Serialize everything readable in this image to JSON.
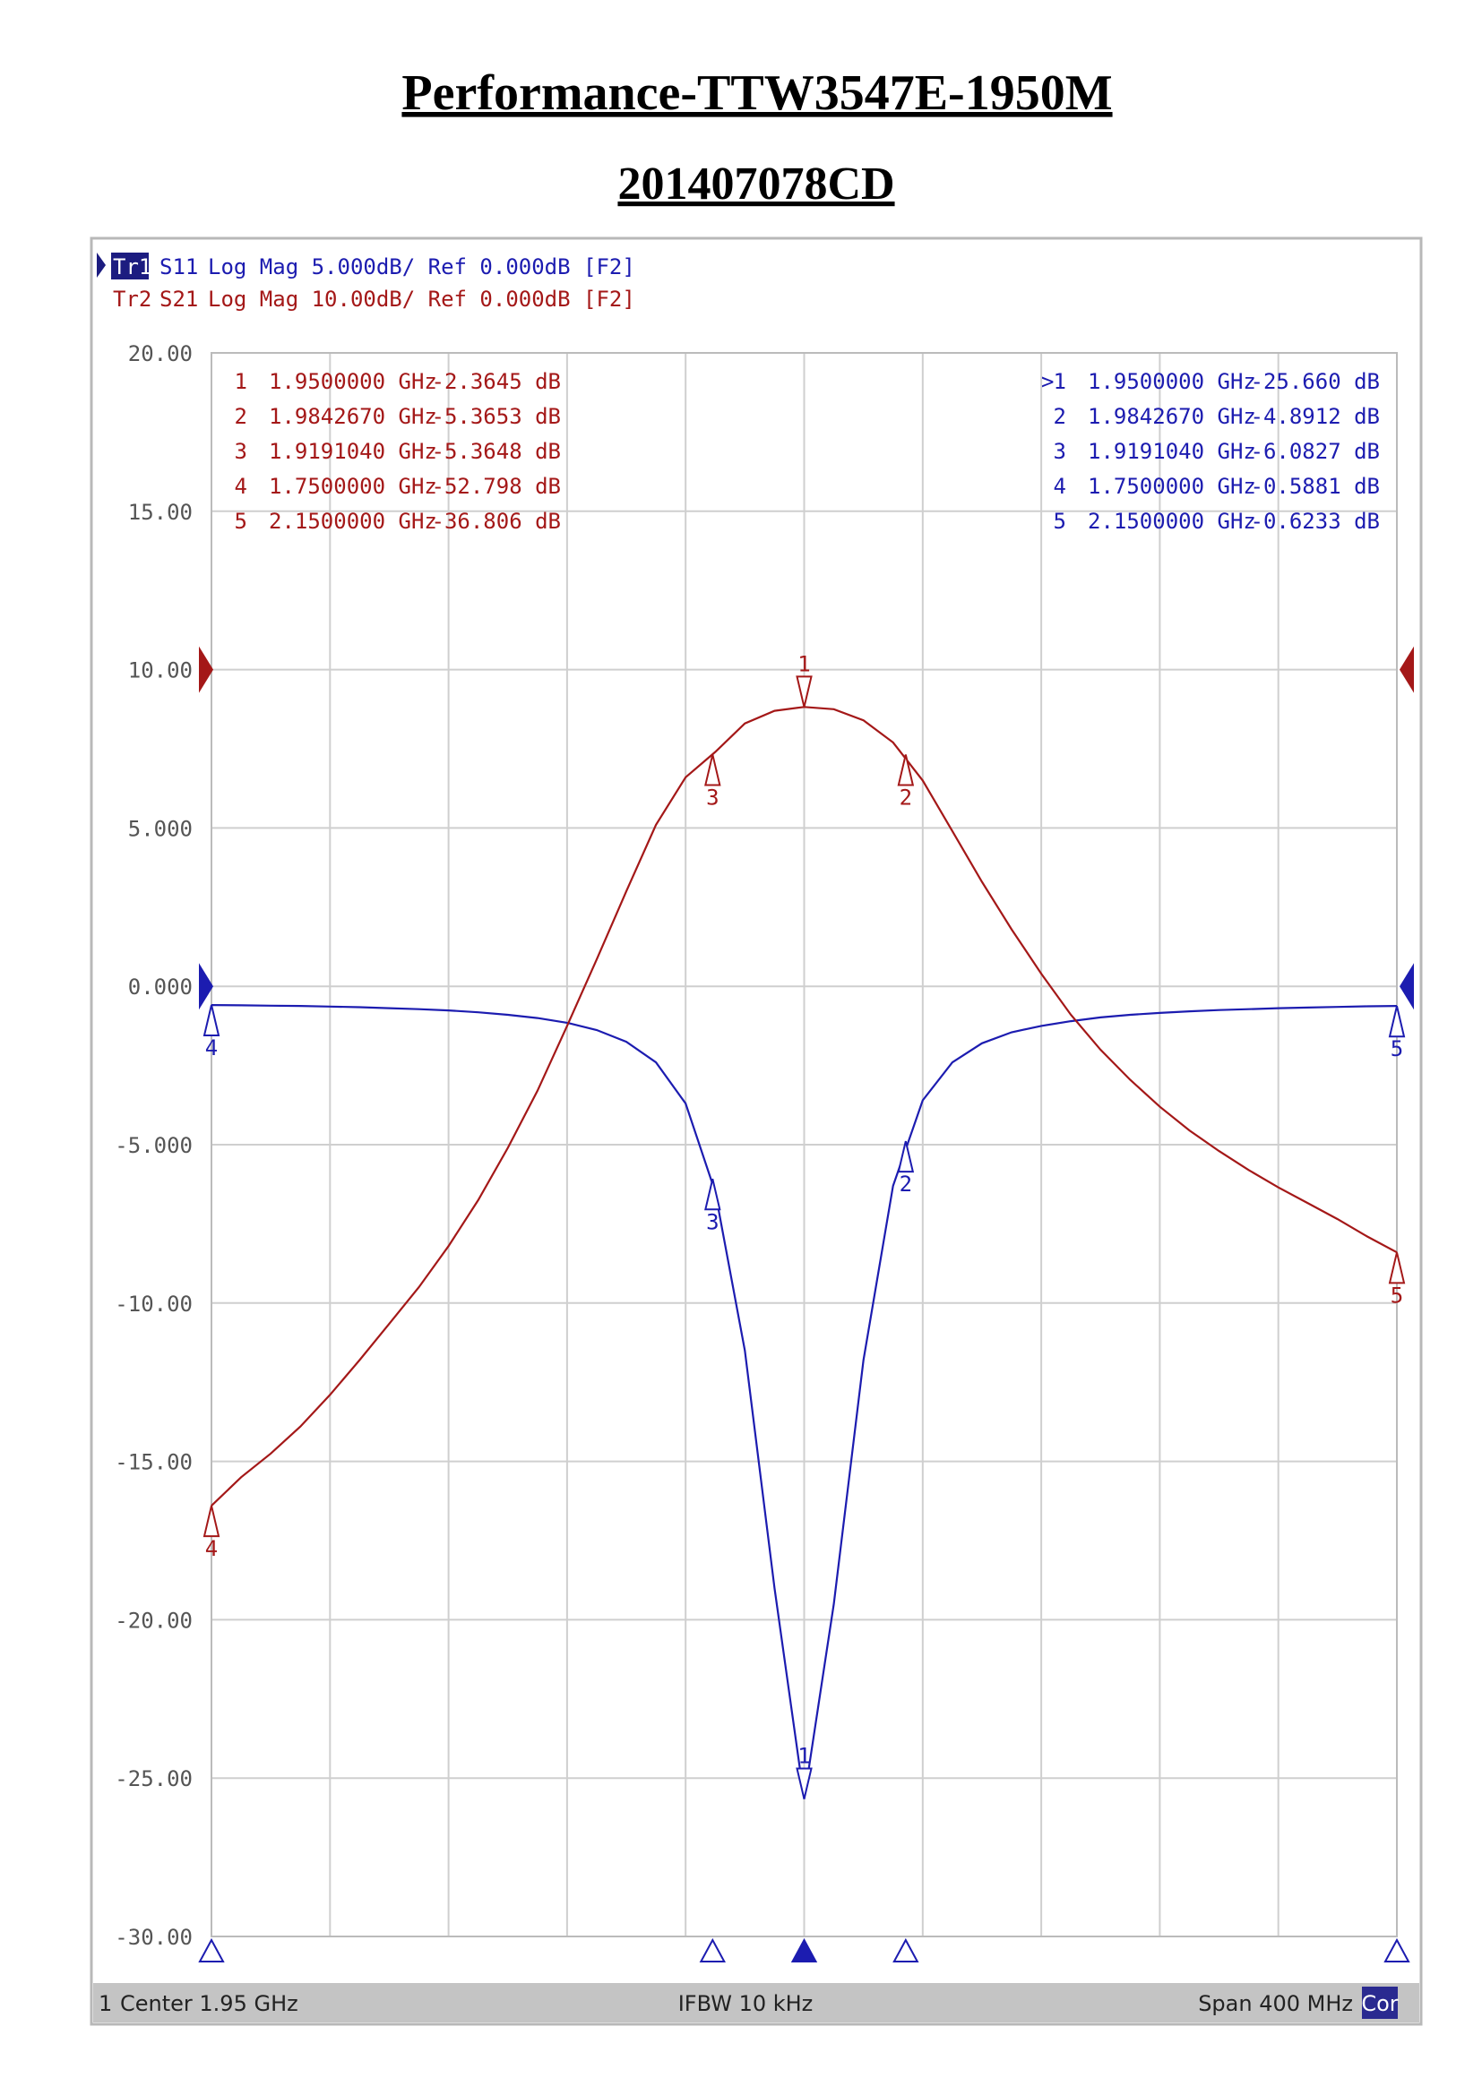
{
  "title": "Performance-TTW3547E-1950M",
  "subtitle": "201407078CD",
  "chart_data": {
    "type": "line",
    "x": [
      1.75,
      1.76,
      1.77,
      1.78,
      1.79,
      1.8,
      1.81,
      1.82,
      1.83,
      1.84,
      1.85,
      1.86,
      1.87,
      1.88,
      1.89,
      1.9,
      1.91,
      1.92,
      1.93,
      1.94,
      1.95,
      1.96,
      1.97,
      1.98,
      1.99,
      2.0,
      2.01,
      2.02,
      2.03,
      2.04,
      2.05,
      2.06,
      2.07,
      2.08,
      2.09,
      2.1,
      2.11,
      2.12,
      2.13,
      2.14,
      2.15
    ],
    "xlim": [
      1.75,
      2.15
    ],
    "xticks": [
      1.75,
      1.79,
      1.83,
      1.87,
      1.91,
      1.95,
      1.99,
      2.03,
      2.07,
      2.11,
      2.15
    ],
    "ylim": [
      -30,
      20
    ],
    "yticks": [
      {
        "value": 20,
        "label": "20.00"
      },
      {
        "value": 15,
        "label": "15.00"
      },
      {
        "value": 10,
        "label": "10.00"
      },
      {
        "value": 5,
        "label": "5.000"
      },
      {
        "value": 0,
        "label": "0.000"
      },
      {
        "value": -5,
        "label": "-5.000"
      },
      {
        "value": -10,
        "label": "-10.00"
      },
      {
        "value": -15,
        "label": "-15.00"
      },
      {
        "value": -20,
        "label": "-20.00"
      },
      {
        "value": -25,
        "label": "-25.00"
      },
      {
        "value": -30,
        "label": "-30.00"
      }
    ],
    "y2lim": [
      -80,
      20
    ],
    "grid": true,
    "series": [
      {
        "name": "S11",
        "trace": "Tr1",
        "format": "Log Mag 5.000dB/ Ref 0.000dB [F2]",
        "color": "#1c1cb0",
        "ref": 0,
        "active": ">",
        "values": [
          -0.59,
          -0.6,
          -0.61,
          -0.62,
          -0.64,
          -0.66,
          -0.69,
          -0.72,
          -0.76,
          -0.82,
          -0.9,
          -1.0,
          -1.15,
          -1.38,
          -1.75,
          -2.4,
          -3.7,
          -6.5,
          -11.5,
          -19.0,
          -25.66,
          -19.5,
          -11.8,
          -6.3,
          -3.6,
          -2.4,
          -1.8,
          -1.45,
          -1.25,
          -1.1,
          -0.98,
          -0.9,
          -0.84,
          -0.79,
          -0.75,
          -0.72,
          -0.69,
          -0.67,
          -0.65,
          -0.63,
          -0.62
        ],
        "markers": {
          "ids": [
            "1",
            "2",
            "3",
            "4",
            "5"
          ],
          "x": [
            1.95,
            1.984267,
            1.919104,
            1.75,
            2.15
          ],
          "x_labels": [
            "1.9500000 GHz",
            "1.9842670 GHz",
            "1.9191040 GHz",
            "1.7500000 GHz",
            "2.1500000 GHz"
          ],
          "values": [
            -25.66,
            -4.8912,
            -6.0827,
            -0.5881,
            -0.6233
          ],
          "value_labels": [
            "-25.660 dB",
            "-4.8912 dB",
            "-6.0827 dB",
            "-0.5881 dB",
            "-0.6233 dB"
          ]
        }
      },
      {
        "name": "S21",
        "trace": "Tr2",
        "format": "Log Mag 10.00dB/ Ref 0.000dB [F2]",
        "color": "#a41818",
        "ref": 0,
        "axis": "y2",
        "values": [
          -52.8,
          -51,
          -49.5,
          -47.8,
          -45.8,
          -43.6,
          -41.3,
          -39,
          -36.4,
          -33.5,
          -30.2,
          -26.6,
          -22.5,
          -18.3,
          -14.0,
          -9.8,
          -6.8,
          -5.2,
          -3.4,
          -2.6,
          -2.36,
          -2.5,
          -3.2,
          -4.6,
          -7.0,
          -10.2,
          -13.4,
          -16.4,
          -19.2,
          -21.8,
          -24.0,
          -25.9,
          -27.6,
          -29.1,
          -30.4,
          -31.6,
          -32.7,
          -33.7,
          -34.7,
          -35.8,
          -36.8
        ],
        "markers": {
          "ids": [
            "1",
            "2",
            "3",
            "4",
            "5"
          ],
          "x": [
            1.95,
            1.984267,
            1.919104,
            1.75,
            2.15
          ],
          "x_labels": [
            "1.9500000 GHz",
            "1.9842670 GHz",
            "1.9191040 GHz",
            "1.7500000 GHz",
            "2.1500000 GHz"
          ],
          "values": [
            -2.3645,
            -5.3653,
            -5.3648,
            -52.798,
            -36.806
          ],
          "value_labels": [
            "-2.3645 dB",
            "-5.3653 dB",
            "-5.3648 dB",
            "-52.798 dB",
            "-36.806 dB"
          ]
        }
      }
    ],
    "footer": {
      "channel": "1",
      "center": "Center 1.95 GHz",
      "ifbw": "IFBW 10 kHz",
      "span": "Span 400 MHz",
      "cor": "Cor"
    }
  }
}
